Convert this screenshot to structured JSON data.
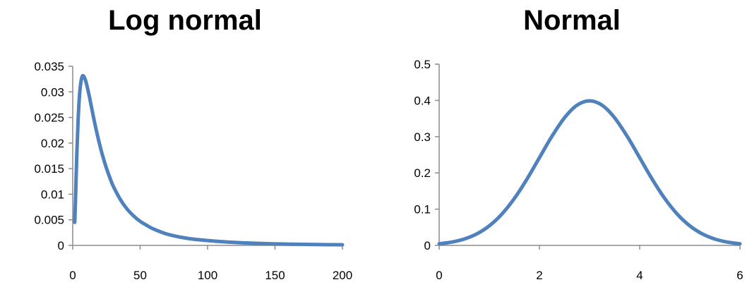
{
  "chart_data": [
    {
      "type": "line",
      "title": "Log normal",
      "xlabel": "",
      "ylabel": "",
      "xlim": [
        0,
        200
      ],
      "ylim": [
        0,
        0.035
      ],
      "x_ticks": [
        0,
        50,
        100,
        150,
        200
      ],
      "y_ticks": [
        0,
        0.005,
        0.01,
        0.015,
        0.02,
        0.025,
        0.03,
        0.035
      ],
      "x_tick_labels": [
        "0",
        "50",
        "100",
        "150",
        "200"
      ],
      "y_tick_labels": [
        "0",
        "0.005",
        "0.01",
        "0.015",
        "0.02",
        "0.025",
        "0.03",
        "0.035"
      ],
      "grid": false,
      "legend": "none",
      "color": "#4f81bd",
      "series": [
        {
          "x": [
            1.5,
            2,
            3,
            4,
            5,
            6,
            7,
            8,
            9,
            10,
            12,
            14,
            16,
            18,
            20,
            22,
            25,
            28,
            30,
            35,
            40,
            45,
            50,
            55,
            60,
            70,
            80,
            90,
            100,
            110,
            120,
            130,
            140,
            150,
            160,
            170,
            180,
            190,
            200
          ],
          "y": [
            0.0045,
            0.0085,
            0.0175,
            0.0245,
            0.0292,
            0.0318,
            0.033,
            0.0331,
            0.0326,
            0.0318,
            0.0295,
            0.0269,
            0.0243,
            0.0219,
            0.0197,
            0.0177,
            0.0151,
            0.0129,
            0.0116,
            0.0091,
            0.0072,
            0.0058,
            0.0047,
            0.0039,
            0.0032,
            0.0022,
            0.0016,
            0.0012,
            0.00095,
            0.00074,
            0.00058,
            0.00046,
            0.00037,
            0.0003,
            0.00025,
            0.00021,
            0.00017,
            0.00014,
            0.00012
          ]
        }
      ]
    },
    {
      "type": "line",
      "title": "Normal",
      "xlabel": "",
      "ylabel": "",
      "xlim": [
        0,
        6
      ],
      "ylim": [
        0,
        0.5
      ],
      "x_ticks": [
        0,
        2,
        4,
        6
      ],
      "y_ticks": [
        0,
        0.1,
        0.2,
        0.3,
        0.4,
        0.5
      ],
      "x_tick_labels": [
        "0",
        "2",
        "4",
        "6"
      ],
      "y_tick_labels": [
        "0",
        "0.1",
        "0.2",
        "0.3",
        "0.4",
        "0.5"
      ],
      "grid": false,
      "legend": "none",
      "color": "#4f81bd",
      "series": [
        {
          "x": [
            0,
            0.25,
            0.5,
            0.75,
            1,
            1.25,
            1.5,
            1.75,
            2,
            2.25,
            2.5,
            2.75,
            3,
            3.25,
            3.5,
            3.75,
            4,
            4.25,
            4.5,
            4.75,
            5,
            5.25,
            5.5,
            5.75,
            6
          ],
          "y": [
            0.0044,
            0.0091,
            0.0175,
            0.0317,
            0.054,
            0.0863,
            0.1295,
            0.1826,
            0.242,
            0.3011,
            0.3521,
            0.3867,
            0.3989,
            0.3867,
            0.3521,
            0.3011,
            0.242,
            0.1826,
            0.1295,
            0.0863,
            0.054,
            0.0317,
            0.0175,
            0.0091,
            0.0044
          ]
        }
      ]
    }
  ]
}
